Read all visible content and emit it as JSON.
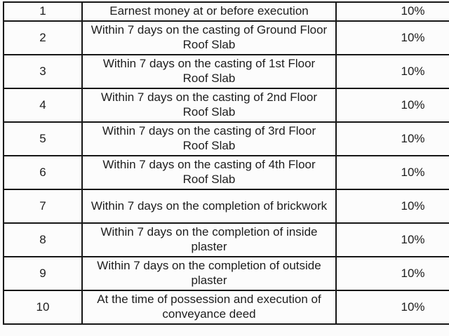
{
  "colors": {
    "background": "#fbfbfb",
    "cell_background": "#fcfcfc",
    "border": "#161616",
    "text": "#1d1d1d"
  },
  "table": {
    "description": "payment-schedule-table",
    "rows": [
      {
        "no": "1",
        "milestone": "Earnest money at or before execution",
        "percent": "10%"
      },
      {
        "no": "2",
        "milestone": "Within 7 days on the casting of Ground Floor Roof Slab",
        "percent": "10%"
      },
      {
        "no": "3",
        "milestone": "Within 7 days on the casting of 1st Floor Roof Slab",
        "percent": "10%"
      },
      {
        "no": "4",
        "milestone": "Within 7 days on the casting of 2nd Floor Roof Slab",
        "percent": "10%"
      },
      {
        "no": "5",
        "milestone": "Within 7 days on the casting of 3rd Floor Roof Slab",
        "percent": "10%"
      },
      {
        "no": "6",
        "milestone": "Within 7 days on the casting of 4th Floor Roof Slab",
        "percent": "10%"
      },
      {
        "no": "7",
        "milestone": "Within 7 days on the completion of brickwork",
        "percent": "10%"
      },
      {
        "no": "8",
        "milestone": "Within 7 days on the completion of inside plaster",
        "percent": "10%"
      },
      {
        "no": "9",
        "milestone": "Within 7 days on the completion of outside plaster",
        "percent": "10%"
      },
      {
        "no": "10",
        "milestone": "At the time of possession and execution of conveyance deed",
        "percent": "10%"
      }
    ]
  }
}
